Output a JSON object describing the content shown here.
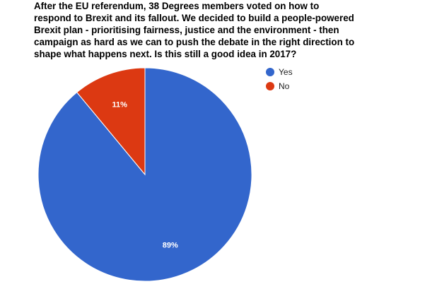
{
  "chart_data": {
    "type": "pie",
    "title_lines": [
      "After the EU referendum, 38 Degrees members voted on how to",
      "respond to Brexit and its fallout. We decided to build a people-powered",
      "Brexit plan - prioritising fairness, justice and the environment - then",
      "campaign as hard as we can to push the debate in the right direction to",
      "shape what happens next. Is this still a good idea in 2017?"
    ],
    "slices": [
      {
        "label": "Yes",
        "value": 89,
        "display": "89%",
        "color": "#3366cc"
      },
      {
        "label": "No",
        "value": 11,
        "display": "11%",
        "color": "#dc3912"
      }
    ],
    "legend_position": "right"
  }
}
